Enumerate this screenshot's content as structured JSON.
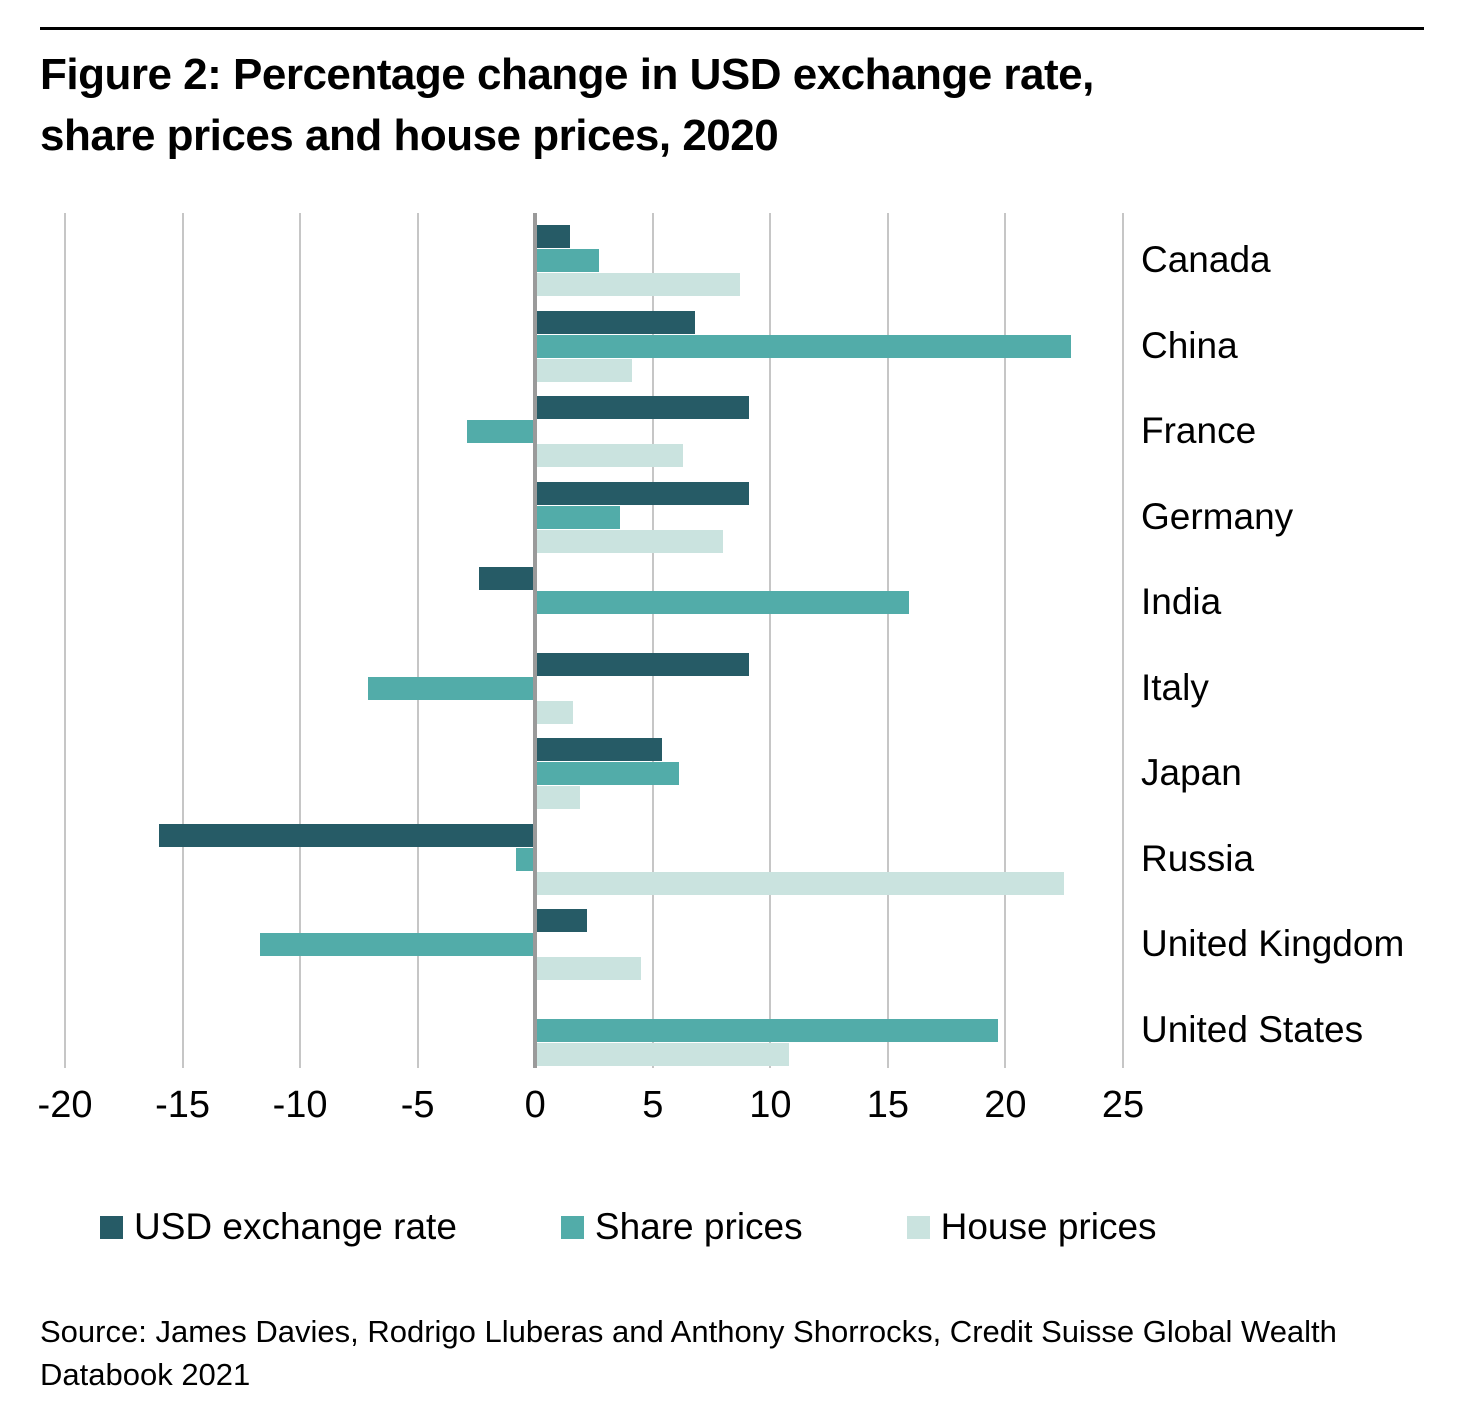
{
  "title": {
    "line1": "Figure 2: Percentage change in USD exchange rate,",
    "line2": "share prices and house prices, 2020"
  },
  "chart_data": {
    "type": "bar",
    "orientation": "horizontal",
    "title": "Figure 2: Percentage change in USD exchange rate, share prices and house prices, 2020",
    "categories": [
      "Canada",
      "China",
      "France",
      "Germany",
      "India",
      "Italy",
      "Japan",
      "Russia",
      "United Kingdom",
      "United States"
    ],
    "series": [
      {
        "name": "USD exchange rate",
        "color": "#265b66",
        "values": [
          1.5,
          6.8,
          9.1,
          9.1,
          -2.4,
          9.1,
          5.4,
          -16.0,
          2.2,
          0
        ]
      },
      {
        "name": "Share prices",
        "color": "#52aca9",
        "values": [
          2.7,
          22.8,
          -2.9,
          3.6,
          15.9,
          -7.1,
          6.1,
          -0.8,
          -11.7,
          19.7
        ]
      },
      {
        "name": "House prices",
        "color": "#cae3df",
        "values": [
          8.7,
          4.1,
          6.3,
          8.0,
          0,
          1.6,
          1.9,
          22.5,
          4.5,
          10.8
        ]
      }
    ],
    "xlim": [
      -20,
      25
    ],
    "x_ticks": [
      -20,
      -15,
      -10,
      -5,
      0,
      5,
      10,
      15,
      20,
      25
    ],
    "grid": "vertical",
    "legend_position": "bottom",
    "xlabel": "",
    "ylabel": ""
  },
  "colors": {
    "rule": "#000000",
    "grid": "#c6c6c6",
    "zero_line": "#9a9a9a",
    "text": "#000000"
  },
  "source": {
    "line1": "Source: James Davies, Rodrigo Lluberas and Anthony Shorrocks, Credit Suisse Global Wealth",
    "line2": "Databook 2021"
  }
}
